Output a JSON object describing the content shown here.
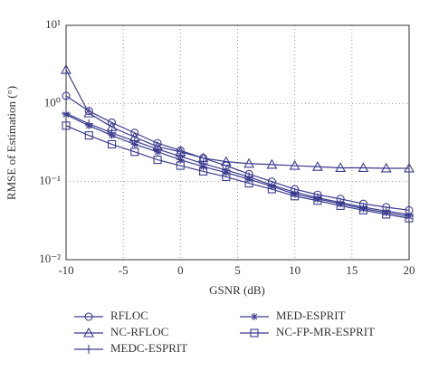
{
  "chart_data": {
    "type": "line",
    "log_y": true,
    "grid": true,
    "xlabel": "GSNR (dB)",
    "ylabel": "RMSE of Estimation (°)",
    "x": [
      -10,
      -8,
      -6,
      -4,
      -2,
      0,
      2,
      4,
      6,
      8,
      10,
      12,
      14,
      16,
      18,
      20
    ],
    "xlim": [
      -10,
      20
    ],
    "xticks": [
      -10,
      -5,
      0,
      5,
      10,
      15,
      20
    ],
    "ylim": [
      0.01,
      10
    ],
    "yticks": [
      {
        "value": 0.01,
        "label": "10⁻²"
      },
      {
        "value": 0.1,
        "label": "10⁻¹"
      },
      {
        "value": 1,
        "label": "10⁰"
      },
      {
        "value": 10,
        "label": "10¹"
      }
    ],
    "series": [
      {
        "name": "RFLOC",
        "color": "#3b3b8f",
        "marker": "circle",
        "values": [
          1.25,
          0.8,
          0.57,
          0.42,
          0.31,
          0.25,
          0.2,
          0.16,
          0.125,
          0.1,
          0.08,
          0.068,
          0.06,
          0.052,
          0.047,
          0.043
        ]
      },
      {
        "name": "NC-RFLOC",
        "color": "#3b3b8f",
        "marker": "triangle",
        "values": [
          2.7,
          0.75,
          0.5,
          0.37,
          0.28,
          0.24,
          0.2,
          0.18,
          0.17,
          0.165,
          0.16,
          0.155,
          0.15,
          0.15,
          0.148,
          0.148
        ]
      },
      {
        "name": "MEDC-ESPRIT",
        "color": "#3b3b8f",
        "marker": "plus",
        "values": [
          0.75,
          0.55,
          0.42,
          0.33,
          0.26,
          0.21,
          0.17,
          0.14,
          0.115,
          0.09,
          0.073,
          0.062,
          0.054,
          0.047,
          0.042,
          0.038
        ]
      },
      {
        "name": "MED-ESPRIT",
        "color": "#3b3b8f",
        "marker": "star",
        "values": [
          0.72,
          0.52,
          0.39,
          0.3,
          0.24,
          0.19,
          0.155,
          0.13,
          0.107,
          0.087,
          0.069,
          0.06,
          0.052,
          0.045,
          0.04,
          0.036
        ]
      },
      {
        "name": "NC-FP-MR-ESPRIT",
        "color": "#3b3b8f",
        "marker": "square",
        "values": [
          0.52,
          0.39,
          0.3,
          0.24,
          0.19,
          0.16,
          0.135,
          0.115,
          0.095,
          0.08,
          0.065,
          0.057,
          0.049,
          0.043,
          0.038,
          0.034
        ]
      }
    ]
  }
}
